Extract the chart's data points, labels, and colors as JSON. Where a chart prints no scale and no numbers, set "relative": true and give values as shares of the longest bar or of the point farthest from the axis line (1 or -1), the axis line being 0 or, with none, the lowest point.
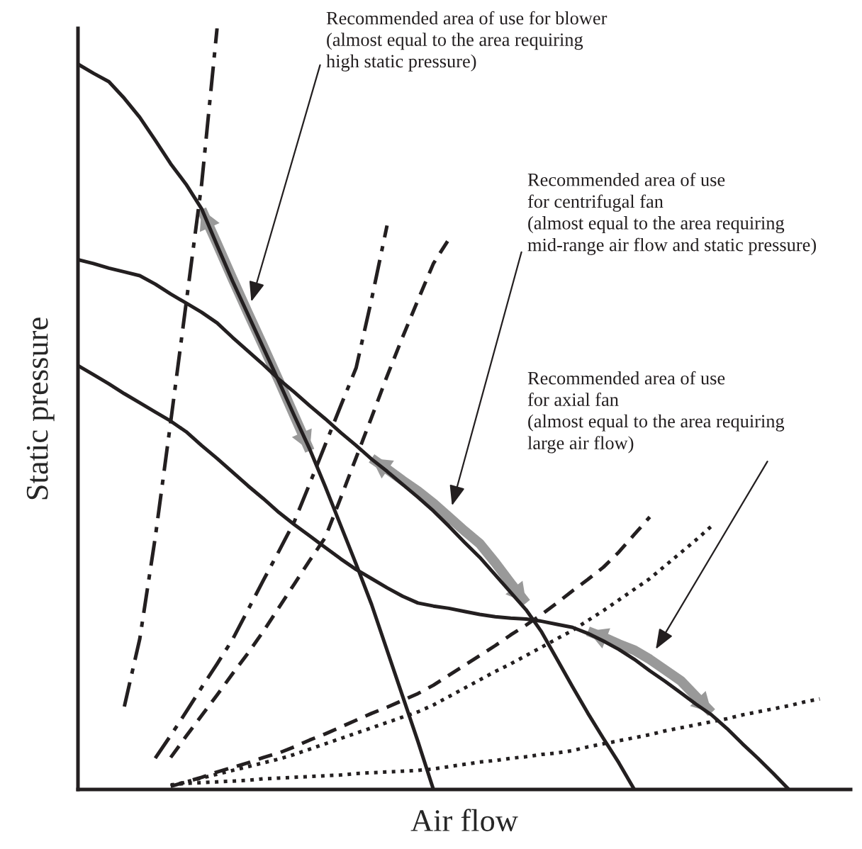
{
  "chart_data": {
    "type": "line",
    "relative": true,
    "xlabel": "Air flow",
    "ylabel": "Static pressure",
    "categories": [
      null,
      null,
      null,
      null,
      null,
      null,
      null,
      null,
      null,
      null,
      null,
      null,
      null,
      null,
      null,
      null,
      null,
      null,
      null,
      null,
      null,
      null,
      null,
      null,
      null,
      null,
      null,
      null,
      null,
      null,
      null,
      null,
      null,
      null,
      null,
      null,
      null,
      null,
      null,
      null,
      null,
      null,
      null,
      null,
      null,
      null,
      null,
      null,
      null,
      null,
      null
    ],
    "series": [
      {
        "color": "#231f20",
        "line_style": "solid",
        "values": [
          0.953,
          0.941,
          0.93,
          0.908,
          0.883,
          0.853,
          0.822,
          0.795,
          0.763,
          0.715,
          0.668,
          0.624,
          0.58,
          0.536,
          0.491,
          0.447,
          0.398,
          0.347,
          0.296,
          0.243,
          0.183,
          0.123,
          0.063,
          0,
          null,
          null,
          null,
          null,
          null,
          null,
          null,
          null,
          null,
          null,
          null,
          null,
          null,
          null,
          null,
          null,
          null,
          null,
          null,
          null,
          null,
          null,
          null,
          null,
          null,
          null,
          null
        ]
      },
      {
        "color": "#231f20",
        "line_style": "solid",
        "values": [
          0.696,
          0.691,
          0.685,
          0.68,
          0.675,
          0.664,
          0.651,
          0.639,
          0.627,
          0.613,
          0.594,
          0.576,
          0.558,
          0.539,
          0.522,
          0.504,
          0.487,
          0.469,
          0.452,
          0.434,
          0.418,
          0.401,
          0.384,
          0.366,
          0.346,
          0.325,
          0.305,
          0.282,
          0.259,
          0.236,
          0.207,
          0.171,
          0.135,
          0.1,
          0.067,
          0.035,
          0,
          null,
          null,
          null,
          null,
          null,
          null,
          null,
          null,
          null,
          null,
          null,
          null,
          null,
          null
        ]
      },
      {
        "color": "#231f20",
        "line_style": "solid",
        "values": [
          0.557,
          0.545,
          0.533,
          0.52,
          0.508,
          0.496,
          0.484,
          0.47,
          0.452,
          0.435,
          0.417,
          0.399,
          0.382,
          0.364,
          0.348,
          0.333,
          0.318,
          0.303,
          0.289,
          0.277,
          0.265,
          0.254,
          0.245,
          0.241,
          0.238,
          0.234,
          0.23,
          0.227,
          0.225,
          0.224,
          0.221,
          0.217,
          0.213,
          0.205,
          0.195,
          0.184,
          0.171,
          0.156,
          0.142,
          0.127,
          0.112,
          0.098,
          0.08,
          0.06,
          0.041,
          0.021,
          0,
          null,
          null,
          null,
          null
        ]
      },
      {
        "color": "#231f20",
        "line_style": "dashdot",
        "values": [
          null,
          null,
          null,
          0.109,
          0.198,
          0.331,
          0.483,
          0.639,
          0.795,
          1.0,
          null,
          null,
          null,
          null,
          null,
          null,
          null,
          null,
          null,
          null,
          null,
          null,
          null,
          null,
          null,
          null,
          null,
          null,
          null,
          null,
          null,
          null,
          null,
          null,
          null,
          null,
          null,
          null,
          null,
          null,
          null,
          null,
          null,
          null,
          null,
          null,
          null,
          null,
          null,
          null,
          null
        ]
      },
      {
        "color": "#231f20",
        "line_style": "dashdot",
        "values": [
          null,
          null,
          null,
          null,
          null,
          0.041,
          0.071,
          0.102,
          0.134,
          0.165,
          0.197,
          0.236,
          0.275,
          0.313,
          0.352,
          0.402,
          0.453,
          0.504,
          0.554,
          0.644,
          0.741,
          null,
          null,
          null,
          null,
          null,
          null,
          null,
          null,
          null,
          null,
          null,
          null,
          null,
          null,
          null,
          null,
          null,
          null,
          null,
          null,
          null,
          null,
          null,
          null,
          null,
          null,
          null,
          null,
          null,
          null
        ]
      },
      {
        "color": "#231f20",
        "line_style": "dashed",
        "values": [
          null,
          null,
          null,
          null,
          null,
          null,
          0.042,
          0.07,
          0.097,
          0.124,
          0.152,
          0.179,
          0.208,
          0.239,
          0.27,
          0.301,
          0.331,
          0.383,
          0.436,
          0.489,
          0.543,
          0.594,
          0.643,
          0.691,
          0.723,
          null,
          null,
          null,
          null,
          null,
          null,
          null,
          null,
          null,
          null,
          null,
          null,
          null,
          null,
          null,
          null,
          null,
          null,
          null,
          null,
          null,
          null,
          null,
          null,
          null,
          null
        ]
      },
      {
        "color": "#231f20",
        "line_style": "dashed",
        "values": [
          null,
          null,
          null,
          null,
          null,
          null,
          0.004,
          0.01,
          0.016,
          0.023,
          0.029,
          0.035,
          0.042,
          0.048,
          0.056,
          0.065,
          0.073,
          0.082,
          0.091,
          0.1,
          0.108,
          0.117,
          0.126,
          0.137,
          0.15,
          0.163,
          0.176,
          0.189,
          0.203,
          0.216,
          0.23,
          0.245,
          0.261,
          0.276,
          0.292,
          0.312,
          0.335,
          0.358,
          null,
          null,
          null,
          null,
          null,
          null,
          null,
          null,
          null,
          null,
          null,
          null,
          null
        ]
      },
      {
        "color": "#231f20",
        "line_style": "dotted",
        "values": [
          null,
          null,
          null,
          null,
          null,
          null,
          0.005,
          0.01,
          0.015,
          0.02,
          0.025,
          0.03,
          0.035,
          0.04,
          0.046,
          0.053,
          0.06,
          0.067,
          0.074,
          0.081,
          0.088,
          0.095,
          0.102,
          0.111,
          0.122,
          0.133,
          0.144,
          0.155,
          0.165,
          0.176,
          0.187,
          0.198,
          0.209,
          0.222,
          0.235,
          0.249,
          0.263,
          0.277,
          0.294,
          0.311,
          0.328,
          0.346,
          null,
          null,
          null,
          null,
          null,
          null,
          null,
          null,
          null
        ]
      },
      {
        "color": "#231f20",
        "line_style": "dotted",
        "values": [
          null,
          null,
          null,
          null,
          null,
          null,
          0.006,
          0.008,
          0.009,
          0.01,
          0.011,
          0.012,
          0.014,
          0.015,
          0.016,
          0.017,
          0.018,
          0.019,
          0.021,
          0.022,
          0.023,
          0.024,
          0.025,
          0.027,
          0.03,
          0.033,
          0.036,
          0.038,
          0.041,
          0.043,
          0.046,
          0.048,
          0.051,
          0.056,
          0.06,
          0.064,
          0.068,
          0.072,
          0.077,
          0.081,
          0.085,
          0.089,
          0.093,
          0.098,
          0.102,
          0.106,
          0.11,
          0.115,
          0.119,
          null,
          null
        ]
      },
      {
        "color": "#999999",
        "line_style": "solid",
        "values": [
          null,
          null,
          null,
          null,
          null,
          null,
          null,
          null,
          0.762,
          0.717,
          0.671,
          0.626,
          0.582,
          0.537,
          0.491,
          0.445,
          null,
          null,
          null,
          null,
          null,
          null,
          null,
          null,
          null,
          null,
          null,
          null,
          null,
          null,
          null,
          null,
          null,
          null,
          null,
          null,
          null,
          null,
          null,
          null,
          null,
          null,
          null,
          null,
          null,
          null,
          null,
          null,
          null,
          null,
          null
        ]
      },
      {
        "color": "#999999",
        "line_style": "solid",
        "values": [
          null,
          null,
          null,
          null,
          null,
          null,
          null,
          null,
          null,
          null,
          null,
          null,
          null,
          null,
          null,
          null,
          null,
          null,
          null,
          0.435,
          0.421,
          0.406,
          0.392,
          0.376,
          0.358,
          0.34,
          0.323,
          0.298,
          0.271,
          0.245,
          null,
          null,
          null,
          null,
          null,
          null,
          null,
          null,
          null,
          null,
          null,
          null,
          null,
          null,
          null,
          null,
          null,
          null,
          null,
          null,
          null
        ]
      },
      {
        "color": "#999999",
        "line_style": "solid",
        "values": [
          null,
          null,
          null,
          null,
          null,
          null,
          null,
          null,
          null,
          null,
          null,
          null,
          null,
          null,
          null,
          null,
          null,
          null,
          null,
          null,
          null,
          null,
          null,
          null,
          null,
          null,
          null,
          null,
          null,
          null,
          null,
          null,
          null,
          0.208,
          0.2,
          0.191,
          0.183,
          0.171,
          0.157,
          0.143,
          0.122,
          0.101,
          null,
          null,
          null,
          null,
          null,
          null,
          null,
          null,
          null
        ]
      }
    ],
    "annotations": [
      "Recommended area of use for blower\n(almost equal to the area requiring\nhigh static pressure)",
      "Recommended area of use\nfor centrifugal fan\n(almost equal to the area requiring\nmid-range air flow and static pressure)",
      "Recommended area of use\nfor axial fan\n(almost equal to the area requiring\nlarge air flow)"
    ]
  }
}
